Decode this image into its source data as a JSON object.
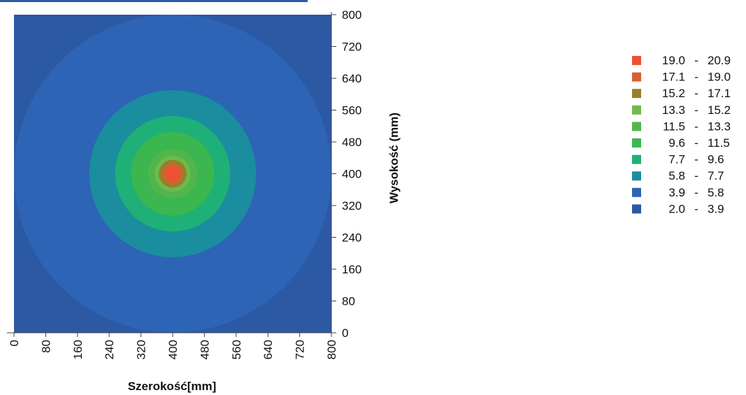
{
  "chart_data": {
    "type": "heatmap",
    "subtype": "filled-contour",
    "xlabel": "Szerokość[mm]",
    "ylabel": "Wysokość (mm)",
    "xlim": [
      0,
      800
    ],
    "ylim": [
      0,
      800
    ],
    "x_ticks": [
      "0",
      "80",
      "160",
      "240",
      "320",
      "400",
      "480",
      "560",
      "640",
      "720",
      "800"
    ],
    "y_ticks": [
      "0",
      "80",
      "160",
      "240",
      "320",
      "400",
      "480",
      "560",
      "640",
      "720",
      "800"
    ],
    "y_axis_side": "right",
    "grid": false,
    "legend_position": "right",
    "center": [
      400,
      400
    ],
    "contour_radii_mm": [
      {
        "band": "2.0 - 3.9",
        "radius": 800
      },
      {
        "band": "3.9 - 5.8",
        "radius": 400
      },
      {
        "band": "5.8 - 7.7",
        "radius": 210
      },
      {
        "band": "7.7 - 9.6",
        "radius": 145
      },
      {
        "band": "9.6 - 11.5",
        "radius": 105
      },
      {
        "band": "11.5 - 13.3",
        "radius": 62
      },
      {
        "band": "13.3 - 15.2",
        "radius": 45
      },
      {
        "band": "15.2 - 17.1",
        "radius": 35
      },
      {
        "band": "17.1 - 19.0",
        "radius": 25
      },
      {
        "band": "19.0 - 20.9",
        "radius": 16
      }
    ],
    "legend": [
      {
        "low": "19.0",
        "high": "20.9",
        "color": "#EF5033"
      },
      {
        "low": "17.1",
        "high": "19.0",
        "color": "#D6602F"
      },
      {
        "low": "15.2",
        "high": "17.1",
        "color": "#9A7E2C"
      },
      {
        "low": "13.3",
        "high": "15.2",
        "color": "#6CBB4C"
      },
      {
        "low": "11.5",
        "high": "13.3",
        "color": "#52B54C"
      },
      {
        "low": "9.6",
        "high": "11.5",
        "color": "#3CB64E"
      },
      {
        "low": "7.7",
        "high": "9.6",
        "color": "#1FB077"
      },
      {
        "low": "5.8",
        "high": "7.7",
        "color": "#1A8E9E"
      },
      {
        "low": "3.9",
        "high": "5.8",
        "color": "#2D64B6"
      },
      {
        "low": "2.0",
        "high": "3.9",
        "color": "#2C59A3"
      }
    ]
  }
}
